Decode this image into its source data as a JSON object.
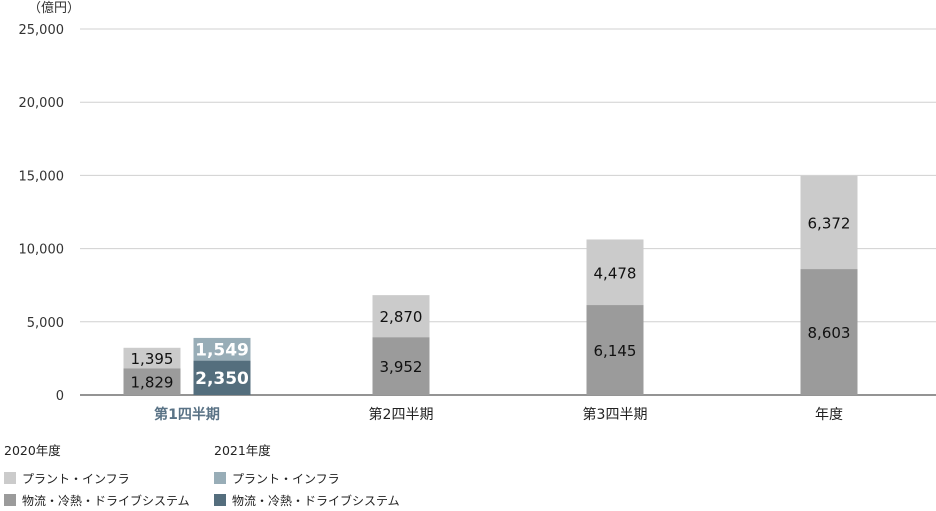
{
  "chart_data": {
    "type": "bar",
    "unit": "（億円）",
    "categories": [
      "第1四半期",
      "第2四半期",
      "第3四半期",
      "年度"
    ],
    "highlight_category": "第1四半期",
    "ylim": [
      0,
      25000
    ],
    "yticks": [
      0,
      5000,
      10000,
      15000,
      20000,
      25000
    ],
    "ytick_labels": [
      "0",
      "5,000",
      "10,000",
      "15,000",
      "20,000",
      "25,000"
    ],
    "grid": true,
    "groups": [
      {
        "name": "2020年度",
        "series": [
          {
            "name": "物流・冷熱・ドライブシステム",
            "color": "#9b9b9b",
            "values": [
              1829,
              3952,
              6145,
              8603
            ],
            "labels": [
              "1,829",
              "3,952",
              "6,145",
              "8,603"
            ]
          },
          {
            "name": "プラント・インフラ",
            "color": "#cbcbcb",
            "values": [
              1395,
              2870,
              4478,
              6372
            ],
            "labels": [
              "1,395",
              "2,870",
              "4,478",
              "6,372"
            ]
          }
        ]
      },
      {
        "name": "2021年度",
        "series": [
          {
            "name": "物流・冷熱・ドライブシステム",
            "color": "#546e7d",
            "values": [
              2350,
              null,
              null,
              null
            ],
            "labels": [
              "2,350",
              "",
              "",
              ""
            ]
          },
          {
            "name": "プラント・インフラ",
            "color": "#98adb7",
            "values": [
              1549,
              null,
              null,
              null
            ],
            "labels": [
              "1,549",
              "",
              "",
              ""
            ]
          }
        ]
      }
    ]
  },
  "legend": {
    "group2020": {
      "title": "2020年度",
      "plant": {
        "label": "プラント・インフラ",
        "color": "#cbcbcb"
      },
      "logistics": {
        "label": "物流・冷熱・ドライブシステム",
        "color": "#9b9b9b"
      }
    },
    "group2021": {
      "title": "2021年度",
      "plant": {
        "label": "プラント・インフラ",
        "color": "#98adb7"
      },
      "logistics": {
        "label": "物流・冷熱・ドライブシステム",
        "color": "#546e7d"
      }
    }
  }
}
